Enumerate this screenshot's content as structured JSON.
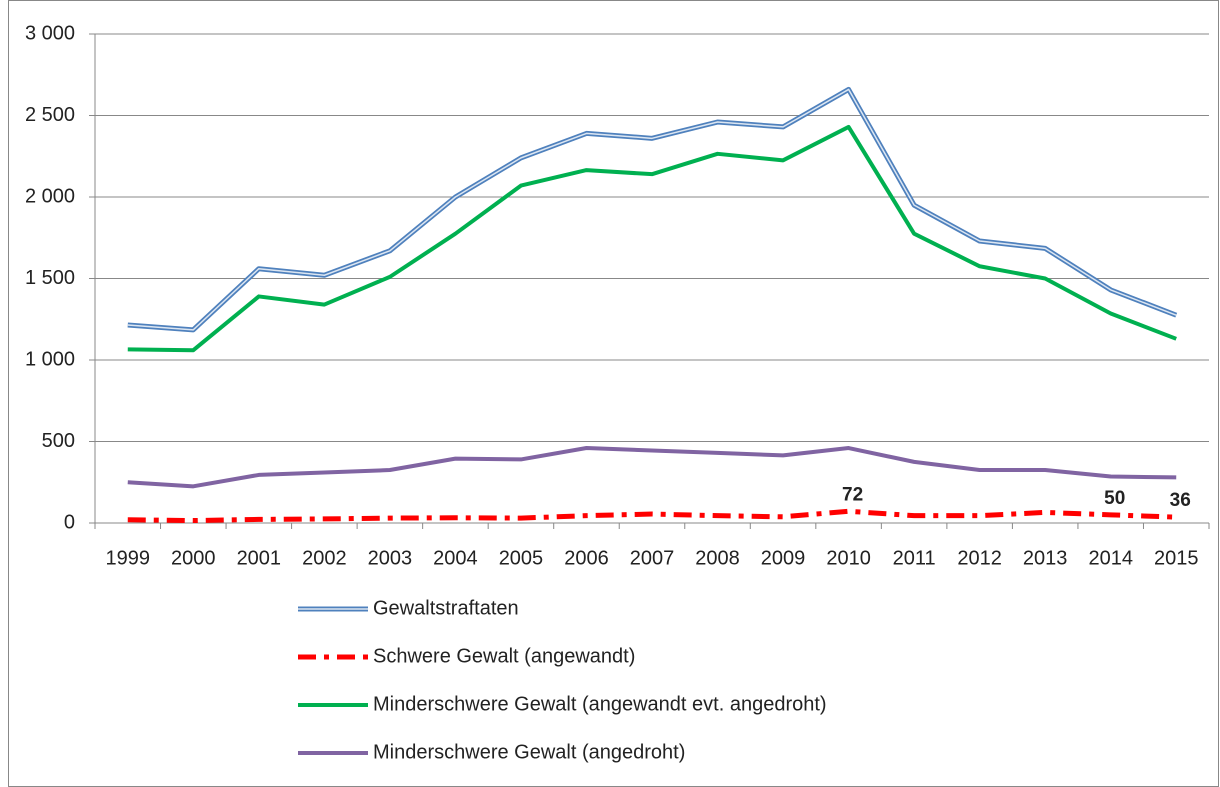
{
  "chart_data": {
    "type": "line",
    "categories": [
      "1999",
      "2000",
      "2001",
      "2002",
      "2003",
      "2004",
      "2005",
      "2006",
      "2007",
      "2008",
      "2009",
      "2010",
      "2011",
      "2012",
      "2013",
      "2014",
      "2015"
    ],
    "ylim": [
      0,
      3000
    ],
    "yticks": [
      0,
      500,
      {
        "value": 1000,
        "label": "1 000"
      },
      {
        "value": 1500,
        "label": "1 500"
      },
      {
        "value": 2000,
        "label": "2 000"
      },
      {
        "value": 2500,
        "label": "2 500"
      },
      {
        "value": 3000,
        "label": "3 000"
      }
    ],
    "grid": true,
    "legend": "bottom",
    "series": [
      {
        "name": "Gewaltstraftaten",
        "color": "#4f81bd",
        "line_style": "double",
        "values": [
          1215,
          1185,
          1560,
          1520,
          1670,
          2000,
          2240,
          2390,
          2360,
          2460,
          2430,
          2660,
          1950,
          1730,
          1685,
          1430,
          1275
        ]
      },
      {
        "name": "Schwere Gewalt (angewandt)",
        "color": "#ff0000",
        "line_style": "dash-dot",
        "values": [
          20,
          15,
          22,
          25,
          30,
          32,
          30,
          45,
          55,
          45,
          38,
          72,
          45,
          45,
          65,
          50,
          36
        ],
        "value_labels": [
          null,
          null,
          null,
          null,
          null,
          null,
          null,
          null,
          null,
          null,
          null,
          "72",
          null,
          null,
          null,
          "50",
          "36"
        ]
      },
      {
        "name": "Minderschwere Gewalt (angewandt evt. angedroht)",
        "color": "#00b050",
        "line_style": "solid",
        "values": [
          1065,
          1060,
          1390,
          1340,
          1510,
          1775,
          2070,
          2165,
          2140,
          2265,
          2225,
          2430,
          1775,
          1575,
          1500,
          1285,
          1130
        ]
      },
      {
        "name": "Minderschwere Gewalt (angedroht)",
        "color": "#8064a2",
        "line_style": "solid",
        "values": [
          250,
          225,
          295,
          310,
          325,
          395,
          390,
          460,
          445,
          430,
          415,
          460,
          375,
          325,
          325,
          285,
          280
        ]
      }
    ]
  }
}
